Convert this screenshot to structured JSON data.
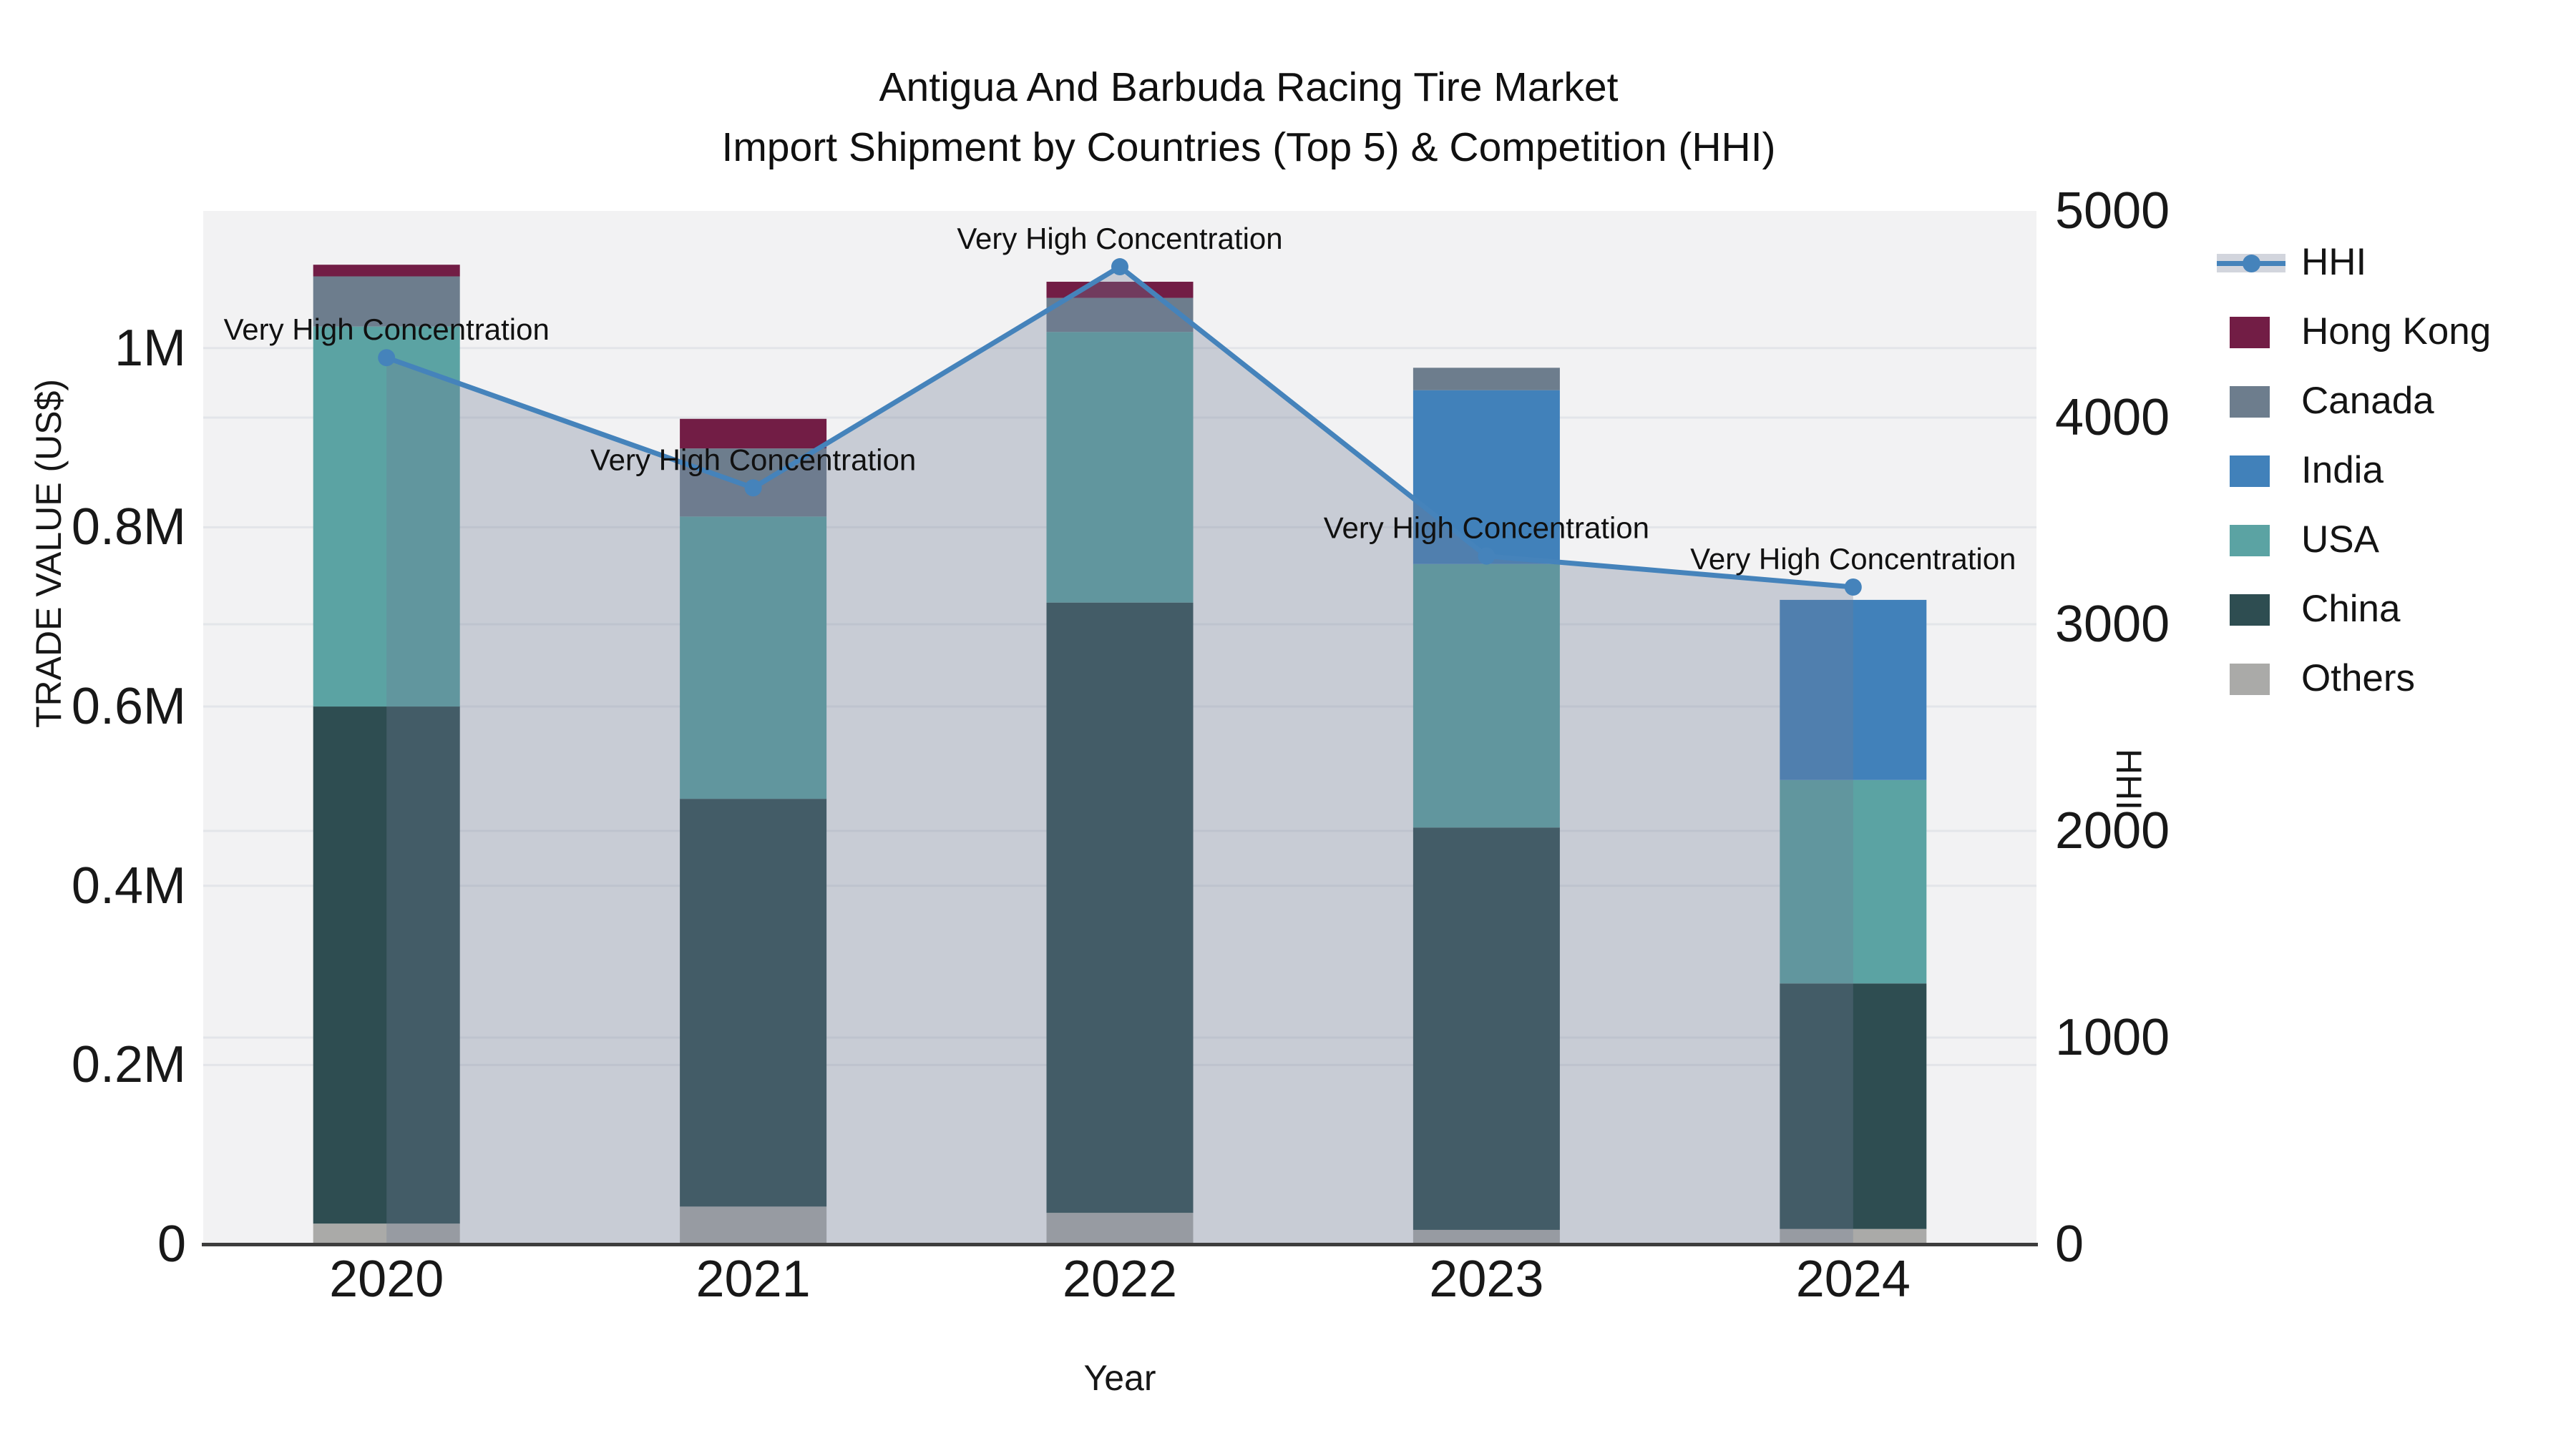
{
  "title": {
    "line1": "Antigua And Barbuda Racing Tire Market",
    "line2": "Import Shipment by Countries (Top 5) & Competition (HHI)"
  },
  "axes": {
    "x": {
      "title": "Year",
      "categories": [
        "2020",
        "2021",
        "2022",
        "2023",
        "2024"
      ]
    },
    "y_left": {
      "title": "TRADE VALUE (US$)",
      "tick_labels": [
        "0",
        "0.2M",
        "0.4M",
        "0.6M",
        "0.8M",
        "1M"
      ],
      "tick_values": [
        0,
        200000,
        400000,
        600000,
        800000,
        1000000
      ],
      "max": 1153000
    },
    "y_right": {
      "title": "HHI",
      "tick_labels": [
        "0",
        "1000",
        "2000",
        "3000",
        "4000",
        "5000"
      ],
      "tick_values": [
        0,
        1000,
        2000,
        3000,
        4000,
        5000
      ],
      "max": 5000
    }
  },
  "legend": [
    {
      "label": "HHI",
      "type": "line",
      "color": "#4583bb"
    },
    {
      "label": "Hong Kong",
      "type": "bar",
      "color": "#721d45"
    },
    {
      "label": "Canada",
      "type": "bar",
      "color": "#6d7d8d"
    },
    {
      "label": "India",
      "type": "bar",
      "color": "#4181ba"
    },
    {
      "label": "USA",
      "type": "bar",
      "color": "#5ba3a3"
    },
    {
      "label": "China",
      "type": "bar",
      "color": "#2e4d51"
    },
    {
      "label": "Others",
      "type": "bar",
      "color": "#aaaaa8"
    }
  ],
  "chart_data": {
    "type": "bar",
    "subtype": "stacked-bars-with-line-overlay",
    "categories": [
      "2020",
      "2021",
      "2022",
      "2023",
      "2024"
    ],
    "stack_order_bottom_to_top": [
      "Others",
      "China",
      "USA",
      "India",
      "Canada",
      "Hong Kong"
    ],
    "series": [
      {
        "name": "Others",
        "color": "#aaaaa8",
        "values": [
          23000,
          42000,
          35000,
          16000,
          17000
        ]
      },
      {
        "name": "China",
        "color": "#2e4d51",
        "values": [
          577000,
          455000,
          681000,
          449000,
          274000
        ]
      },
      {
        "name": "USA",
        "color": "#5ba3a3",
        "values": [
          424000,
          315000,
          302000,
          294000,
          227000
        ]
      },
      {
        "name": "India",
        "color": "#4181ba",
        "values": [
          0,
          0,
          0,
          194000,
          201000
        ]
      },
      {
        "name": "Canada",
        "color": "#6d7d8d",
        "values": [
          56000,
          76000,
          38000,
          25000,
          0
        ]
      },
      {
        "name": "Hong Kong",
        "color": "#721d45",
        "values": [
          13000,
          33000,
          18000,
          0,
          0
        ]
      }
    ],
    "line": {
      "name": "HHI",
      "color": "#4583bb",
      "axis": "right",
      "values": [
        4290,
        3660,
        4730,
        3330,
        3180
      ],
      "area_fill": "rgba(113,124,150,0.32)"
    },
    "annotations": [
      {
        "x": "2020",
        "text": "Very High Concentration"
      },
      {
        "x": "2021",
        "text": "Very High Concentration"
      },
      {
        "x": "2022",
        "text": "Very High Concentration"
      },
      {
        "x": "2023",
        "text": "Very High Concentration"
      },
      {
        "x": "2024",
        "text": "Very High Concentration"
      }
    ],
    "title": "Antigua And Barbuda Racing Tire Market Import Shipment by Countries (Top 5) & Competition (HHI)",
    "xlabel": "Year",
    "ylabel_left": "TRADE VALUE (US$)",
    "ylabel_right": "HHI",
    "ylim_left": [
      0,
      1153000
    ],
    "ylim_right": [
      0,
      5000
    ],
    "grid": true,
    "legend_position": "right"
  },
  "colors": {
    "page_bg": "#ffffff",
    "plot_bg": "#f2f2f3",
    "gridline": "#e3e5e9",
    "axis_line": "#3d3d3d",
    "text": "#141414",
    "annotation_text": "#111111"
  }
}
